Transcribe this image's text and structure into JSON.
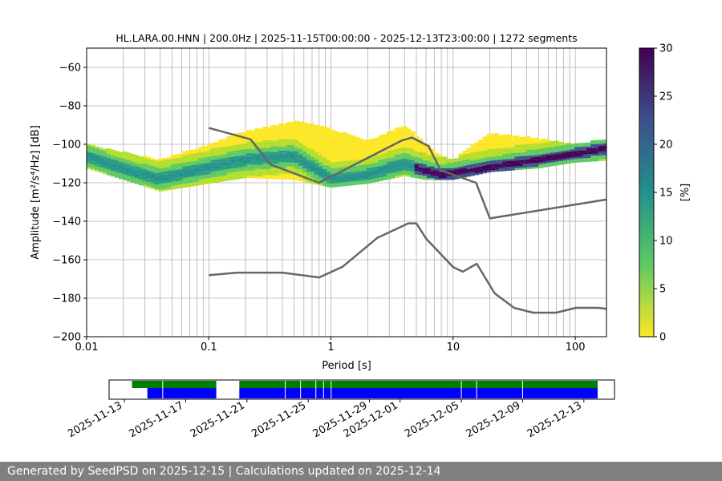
{
  "footer_text": "Generated by SeedPSD on 2025-12-15 | Calculations updated on 2025-12-14",
  "chart_data": {
    "type": "heatmap",
    "title": "HL.LARA.00.HNN | 200.0Hz | 2025-11-15T00:00:00 - 2025-12-13T23:00:00 | 1272 segments",
    "xlabel": "Period [s]",
    "ylabel": "Amplitude [m²/s⁴/Hz] [dB]",
    "xscale": "log",
    "xlim": [
      0.01,
      180
    ],
    "ylim": [
      -200,
      -50
    ],
    "xticks": [
      {
        "value": 0.01,
        "label": "0.01"
      },
      {
        "value": 0.1,
        "label": "0.1"
      },
      {
        "value": 1,
        "label": "1"
      },
      {
        "value": 10,
        "label": "10"
      },
      {
        "value": 100,
        "label": "100"
      }
    ],
    "yticks": [
      -200,
      -180,
      -160,
      -140,
      -120,
      -100,
      -80,
      -60
    ],
    "grid": true,
    "colorbar": {
      "label": "[%]",
      "min": 0,
      "max": 30,
      "ticks": [
        0,
        5,
        10,
        15,
        20,
        25,
        30
      ],
      "colormap": [
        "#fde725",
        "#5ec962",
        "#21918c",
        "#3b528b",
        "#440154"
      ]
    },
    "mode_curve": {
      "period": [
        0.01,
        0.02,
        0.04,
        0.1,
        0.2,
        0.5,
        1,
        2,
        4,
        6,
        8,
        10,
        20,
        50,
        100,
        180
      ],
      "db": [
        -106,
        -113,
        -118,
        -112,
        -108,
        -106,
        -118,
        -116,
        -110,
        -114,
        -116,
        -115,
        -112,
        -108,
        -105,
        -102
      ]
    },
    "density_band": {
      "period": [
        0.01,
        0.02,
        0.04,
        0.1,
        0.2,
        0.5,
        1,
        2,
        4,
        6,
        8,
        10,
        20,
        50,
        100,
        180
      ],
      "lower_db": [
        -112,
        -118,
        -124,
        -120,
        -117,
        -118,
        -122,
        -120,
        -116,
        -118,
        -118,
        -118,
        -114,
        -112,
        -109,
        -108
      ],
      "upper_db": [
        -100,
        -104,
        -108,
        -100,
        -93,
        -88,
        -92,
        -98,
        -90,
        -100,
        -106,
        -108,
        -94,
        -97,
        -100,
        -97
      ]
    },
    "high_noise_model": {
      "period": [
        0.1,
        0.22,
        0.32,
        0.8,
        3.8,
        4.6,
        6.3,
        7.9,
        15.4,
        20,
        180
      ],
      "db": [
        -91.5,
        -97.4,
        -110.5,
        -120,
        -98,
        -96.5,
        -101,
        -113.5,
        -120,
        -138.5,
        -128.7
      ]
    },
    "low_noise_model": {
      "period": [
        0.1,
        0.17,
        0.4,
        0.8,
        1.24,
        2.4,
        4.3,
        5,
        6,
        10,
        12,
        15.6,
        21.9,
        31.6,
        45,
        70,
        101,
        154,
        180
      ],
      "db": [
        -168,
        -166.7,
        -166.7,
        -169.2,
        -163.7,
        -148.6,
        -141.1,
        -141.1,
        -149,
        -163.8,
        -166.2,
        -162.1,
        -177.5,
        -185,
        -187.5,
        -187.5,
        -185,
        -185,
        -185.5
      ]
    }
  },
  "availability_data": {
    "date_ticks": [
      "2025-11-13",
      "2025-11-17",
      "2025-11-21",
      "2025-11-25",
      "2025-11-29",
      "2025-12-01",
      "2025-12-05",
      "2025-12-09",
      "2025-12-13"
    ],
    "range": [
      "2025-11-12",
      "2025-12-15"
    ],
    "green_bar": [
      [
        "2025-11-13.5",
        "2025-11-19"
      ],
      [
        "2025-11-20.5",
        "2025-12-13.9"
      ]
    ],
    "blue_bar": [
      [
        "2025-11-14.5",
        "2025-11-19"
      ],
      [
        "2025-11-20.5",
        "2025-12-13.9"
      ]
    ],
    "gap_marks": [
      "2025-11-15.5",
      "2025-11-23.5",
      "2025-11-24.5",
      "2025-11-25.5",
      "2025-11-26",
      "2025-11-26.5",
      "2025-12-05",
      "2025-12-06",
      "2025-12-09"
    ],
    "colors": {
      "green": "#008000",
      "blue": "#0000ff"
    }
  }
}
